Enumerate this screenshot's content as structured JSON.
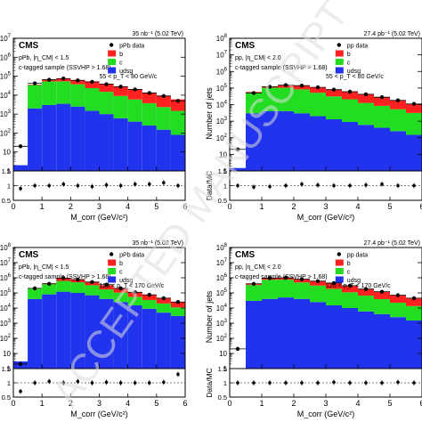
{
  "chart_data": [
    {
      "type": "bar",
      "panel": "top-left",
      "top_right_label": "35 nb⁻¹ (5.02 TeV)",
      "experiment": "CMS",
      "selection": "pPb, |η_CM| < 1.5",
      "tag": "c-tagged sample (SSVHP > 1.68)",
      "pt_range": "55 < p_T < 80 GeV/c",
      "xlabel": "M_corr (GeV/c²)",
      "ylabel": "",
      "ratio_label": "",
      "xlim": [
        0,
        6
      ],
      "ylim": [
        1,
        10000000.0
      ],
      "ratio_ylim": [
        0.5,
        1.5
      ],
      "log_y": true,
      "legend_position": "top-right",
      "bin_edges": [
        0,
        0.5,
        1.0,
        1.5,
        2.0,
        2.5,
        3.0,
        3.5,
        4.0,
        4.5,
        5.0,
        5.5,
        6.0
      ],
      "series": [
        {
          "name": "udsg",
          "values": [
            2,
            2000,
            3000,
            3500,
            2500,
            1500,
            1000,
            600,
            400,
            250,
            150,
            80
          ]
        },
        {
          "name": "c",
          "values": [
            0,
            32000,
            50000,
            50000,
            35000,
            22000,
            14000,
            8500,
            5500,
            3500,
            2200,
            1400
          ]
        },
        {
          "name": "b",
          "values": [
            0,
            2000,
            10000,
            20000,
            25000,
            30000,
            25000,
            20000,
            15000,
            10000,
            7000,
            4500
          ]
        },
        {
          "name": "pPb data",
          "type": "points",
          "values": [
            20,
            42000,
            65000,
            75000,
            60000,
            50000,
            38000,
            28000,
            20000,
            13000,
            9000,
            5000
          ]
        }
      ],
      "ratio": [
        0.9,
        1.0,
        1.0,
        1.05,
        1.0,
        0.97,
        1.02,
        1.0,
        1.05,
        1.05,
        1.1,
        1.0
      ]
    },
    {
      "type": "bar",
      "panel": "top-right",
      "top_right_label": "27.4 pb⁻¹ (5.02 TeV)",
      "experiment": "CMS",
      "selection": "pp, |η_CM| < 2.0",
      "tag": "c-tagged sample (SSVHP > 1.68)",
      "pt_range": "55 < p_T < 80 GeV/c",
      "xlabel": "M_corr (GeV/c²)",
      "ylabel": "Number of jets",
      "ratio_label": "Data/MC",
      "xlim": [
        0,
        6
      ],
      "ylim": [
        1,
        100000000.0
      ],
      "ratio_ylim": [
        0.5,
        1.5
      ],
      "log_y": true,
      "legend_position": "top-right",
      "bin_edges": [
        0,
        0.5,
        1.0,
        1.5,
        2.0,
        2.5,
        3.0,
        3.5,
        4.0,
        4.5,
        5.0,
        5.5,
        6.0
      ],
      "series": [
        {
          "name": "udsg",
          "values": [
            1.5,
            3000,
            4000,
            4000,
            3000,
            2000,
            1300,
            900,
            600,
            400,
            250,
            150
          ]
        },
        {
          "name": "c",
          "values": [
            0,
            50000,
            100000,
            100000,
            80000,
            50000,
            30000,
            20000,
            12000,
            8000,
            5000,
            3000
          ]
        },
        {
          "name": "b",
          "values": [
            0,
            5000,
            20000,
            40000,
            55000,
            55000,
            50000,
            40000,
            30000,
            20000,
            13000,
            8000
          ]
        },
        {
          "name": "pp data",
          "type": "points",
          "values": [
            20,
            50000,
            120000,
            150000,
            140000,
            110000,
            80000,
            60000,
            42000,
            28000,
            18000,
            11000
          ]
        }
      ],
      "ratio": [
        1.0,
        0.95,
        0.97,
        1.0,
        1.05,
        1.02,
        1.0,
        1.0,
        1.02,
        1.05,
        1.0,
        1.0
      ]
    },
    {
      "type": "bar",
      "panel": "bottom-left",
      "top_right_label": "35 nb⁻¹ (5.02 TeV)",
      "experiment": "CMS",
      "selection": "pPb, |η_CM| < 1.5",
      "tag": "c-tagged sample (SSVHP > 1.68)",
      "pt_range": "120 < p_T < 170 GeV/c",
      "xlabel": "M_corr (GeV/c²)",
      "ylabel": "",
      "ratio_label": "",
      "xlim": [
        0,
        6
      ],
      "ylim": [
        1,
        100000000.0
      ],
      "ratio_ylim": [
        0.5,
        1.5
      ],
      "log_y": true,
      "legend_position": "top-right",
      "bin_edges": [
        0,
        0.5,
        1.0,
        1.5,
        2.0,
        2.5,
        3.0,
        3.5,
        4.0,
        4.5,
        5.0,
        5.5,
        6.0
      ],
      "series": [
        {
          "name": "udsg",
          "values": [
            3,
            40000,
            80000,
            120000,
            100000,
            70000,
            40000,
            25000,
            15000,
            9000,
            5000,
            3000
          ]
        },
        {
          "name": "c",
          "values": [
            0,
            150000,
            300000,
            500000,
            400000,
            250000,
            130000,
            80000,
            40000,
            25000,
            15000,
            8000
          ]
        },
        {
          "name": "b",
          "values": [
            0,
            0,
            50000,
            300000,
            300000,
            220000,
            150000,
            100000,
            60000,
            40000,
            25000,
            14000
          ]
        },
        {
          "name": "pPb data",
          "type": "points",
          "values": [
            2,
            200000,
            400000,
            950000,
            750000,
            520000,
            350000,
            200000,
            110000,
            75000,
            45000,
            25000
          ]
        }
      ],
      "ratio": [
        0.7,
        1.0,
        1.05,
        1.0,
        1.05,
        1.0,
        1.02,
        1.0,
        1.0,
        1.0,
        1.02,
        1.3
      ]
    },
    {
      "type": "bar",
      "panel": "bottom-right",
      "top_right_label": "27.4 pb⁻¹ (5.02 TeV)",
      "experiment": "CMS",
      "selection": "pp, |η_CM| < 2.0",
      "tag": "c-tagged sample (SSVHP > 1.68)",
      "pt_range": "120 < p_T < 170 GeV/c",
      "xlabel": "M_corr (GeV/c²)",
      "ylabel": "Number of jets",
      "ratio_label": "Data/MC",
      "xlim": [
        0,
        6
      ],
      "ylim": [
        1,
        100000000.0
      ],
      "ratio_ylim": [
        0.5,
        1.5
      ],
      "log_y": true,
      "legend_position": "top-right",
      "bin_edges": [
        0,
        0.5,
        1.0,
        1.5,
        2.0,
        2.5,
        3.0,
        3.5,
        4.0,
        4.5,
        5.0,
        5.5,
        6.0
      ],
      "series": [
        {
          "name": "udsg",
          "values": [
            1,
            30000,
            40000,
            50000,
            40000,
            25000,
            15000,
            10000,
            6000,
            4000,
            2500,
            1500
          ]
        },
        {
          "name": "c",
          "values": [
            0,
            300000,
            700000,
            700000,
            450000,
            280000,
            170000,
            100000,
            60000,
            35000,
            20000,
            12000
          ]
        },
        {
          "name": "b",
          "values": [
            0,
            50000,
            150000,
            300000,
            350000,
            300000,
            250000,
            180000,
            120000,
            80000,
            50000,
            30000
          ]
        },
        {
          "name": "pp data",
          "type": "points",
          "values": [
            20,
            400000,
            950000,
            1000000,
            800000,
            600000,
            450000,
            300000,
            180000,
            120000,
            70000,
            45000
          ]
        }
      ],
      "ratio": [
        1.0,
        1.0,
        1.0,
        1.0,
        1.0,
        1.0,
        1.02,
        1.0,
        1.0,
        1.0,
        1.02,
        1.0
      ]
    }
  ],
  "colors": {
    "b": "#ff2020",
    "c": "#22dd22",
    "udsg": "#2233ee",
    "data": "#000000",
    "axis": "#000000",
    "reference_line": "#555555",
    "watermark": "#dddddd"
  },
  "watermark_text": "ACCEPTED MANUSCRIPT"
}
